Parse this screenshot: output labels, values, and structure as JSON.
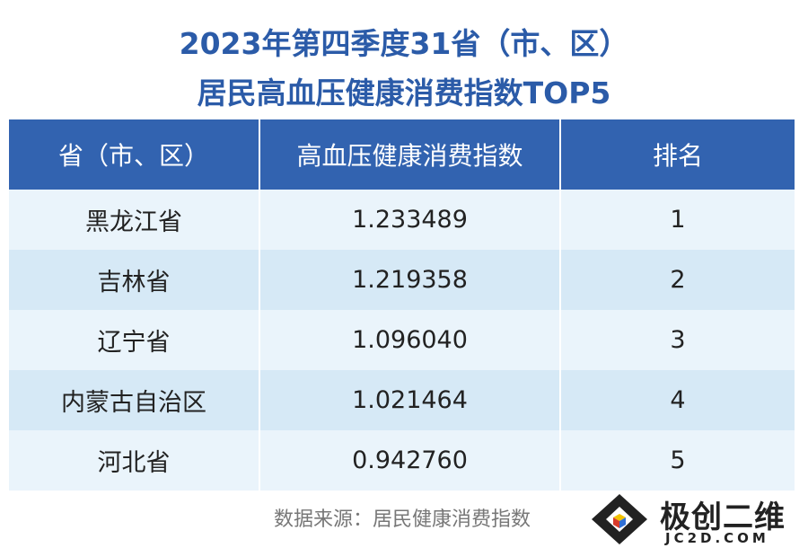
{
  "header": {
    "title_line1": "2023年第四季度31省（市、区）",
    "title_line2": "居民高血压健康消费指数TOP5"
  },
  "table": {
    "columns": [
      "省（市、区）",
      "高血压健康消费指数",
      "排名"
    ],
    "rows": [
      [
        "黑龙江省",
        "1.233489",
        "1"
      ],
      [
        "吉林省",
        "1.219358",
        "2"
      ],
      [
        "辽宁省",
        "1.096040",
        "3"
      ],
      [
        "内蒙古自治区",
        "1.021464",
        "4"
      ],
      [
        "河北省",
        "0.942760",
        "5"
      ]
    ]
  },
  "footer": {
    "source": "数据来源：居民健康消费指数"
  },
  "watermark": {
    "name": "极创二维",
    "url": "JC2D.COM"
  }
}
